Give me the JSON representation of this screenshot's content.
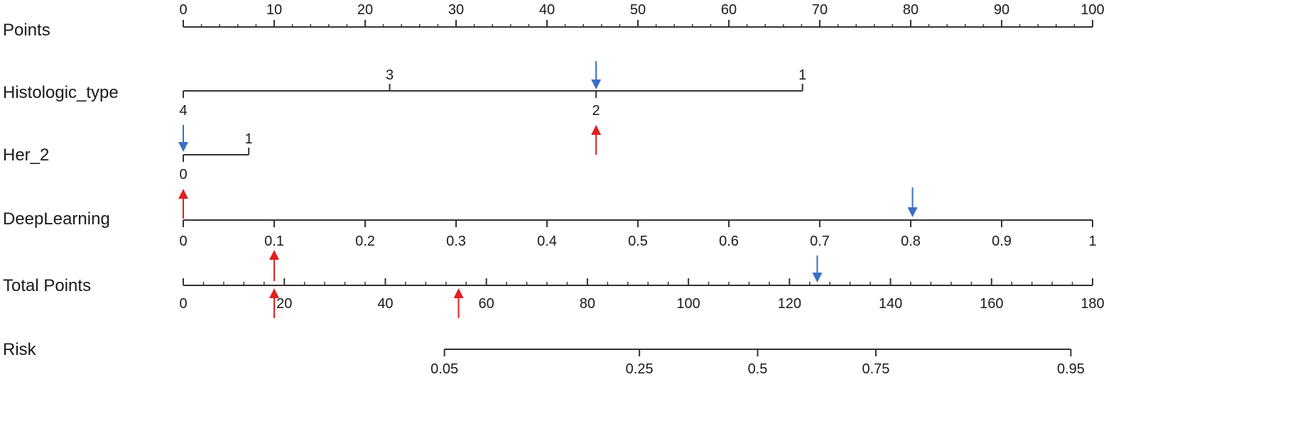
{
  "chart_data": {
    "type": "nomogram",
    "title": "",
    "scales": [
      {
        "name": "Points",
        "ticks": [
          {
            "value": 0,
            "label": "0"
          },
          {
            "value": 10,
            "label": "10"
          },
          {
            "value": 20,
            "label": "20"
          },
          {
            "value": 30,
            "label": "30"
          },
          {
            "value": 40,
            "label": "40"
          },
          {
            "value": 50,
            "label": "50"
          },
          {
            "value": 60,
            "label": "60"
          },
          {
            "value": 70,
            "label": "70"
          },
          {
            "value": 80,
            "label": "80"
          },
          {
            "value": 90,
            "label": "90"
          },
          {
            "value": 100,
            "label": "100"
          }
        ],
        "minor_step": 2
      },
      {
        "name": "Histologic_type",
        "categories": [
          {
            "label": "4",
            "points": 0,
            "side": "below"
          },
          {
            "label": "3",
            "points": 22.7,
            "side": "above"
          },
          {
            "label": "2",
            "points": 45.4,
            "side": "below"
          },
          {
            "label": "1",
            "points": 68.1,
            "side": "above"
          }
        ]
      },
      {
        "name": "Her_2",
        "categories": [
          {
            "label": "0",
            "points": 0,
            "side": "below"
          },
          {
            "label": "1",
            "points": 7.2,
            "side": "above"
          }
        ]
      },
      {
        "name": "DeepLearning",
        "ticks": [
          {
            "value": 0,
            "label": "0",
            "points": 0
          },
          {
            "value": 0.1,
            "label": "0.1",
            "points": 10
          },
          {
            "value": 0.2,
            "label": "0.2",
            "points": 20
          },
          {
            "value": 0.3,
            "label": "0.3",
            "points": 30
          },
          {
            "value": 0.4,
            "label": "0.4",
            "points": 40
          },
          {
            "value": 0.5,
            "label": "0.5",
            "points": 50
          },
          {
            "value": 0.6,
            "label": "0.6",
            "points": 60
          },
          {
            "value": 0.7,
            "label": "0.7",
            "points": 70
          },
          {
            "value": 0.8,
            "label": "0.8",
            "points": 80
          },
          {
            "value": 0.9,
            "label": "0.9",
            "points": 90
          },
          {
            "value": 1,
            "label": "1",
            "points": 100
          }
        ]
      },
      {
        "name": "Total Points",
        "ticks": [
          {
            "value": 0,
            "label": "0"
          },
          {
            "value": 20,
            "label": "20"
          },
          {
            "value": 40,
            "label": "40"
          },
          {
            "value": 60,
            "label": "60"
          },
          {
            "value": 80,
            "label": "80"
          },
          {
            "value": 100,
            "label": "100"
          },
          {
            "value": 120,
            "label": "120"
          },
          {
            "value": 140,
            "label": "140"
          },
          {
            "value": 160,
            "label": "160"
          },
          {
            "value": 180,
            "label": "180"
          }
        ],
        "range": [
          0,
          180
        ],
        "minor_step": 4
      },
      {
        "name": "Risk",
        "ticks": [
          {
            "value": 0.05,
            "label": "0.05",
            "total_points": 51.7
          },
          {
            "value": 0.25,
            "label": "0.25",
            "total_points": 90.3
          },
          {
            "value": 0.5,
            "label": "0.5",
            "total_points": 113.7
          },
          {
            "value": 0.75,
            "label": "0.75",
            "total_points": 137.1
          },
          {
            "value": 0.95,
            "label": "0.95",
            "total_points": 175.7
          }
        ]
      }
    ],
    "markers": [
      {
        "color": "#3a6fc4",
        "scale": "Histologic_type",
        "points": 45.4,
        "direction": "down"
      },
      {
        "color": "#3a6fc4",
        "scale": "Her_2",
        "points": 0,
        "direction": "down"
      },
      {
        "color": "#3a6fc4",
        "scale": "DeepLearning",
        "points": 80.2,
        "direction": "down"
      },
      {
        "color": "#3a6fc4",
        "scale": "Total Points",
        "value": 125.5,
        "direction": "down"
      },
      {
        "color": "#e02020",
        "scale": "Histologic_type",
        "points": 45.4,
        "direction": "up"
      },
      {
        "color": "#e02020",
        "scale": "Her_2",
        "points": 0,
        "direction": "up"
      },
      {
        "color": "#e02020",
        "scale": "DeepLearning",
        "points": 10,
        "direction": "up"
      },
      {
        "color": "#e02020",
        "scale": "Total Points",
        "value": 18,
        "direction": "up"
      },
      {
        "color": "#e02020",
        "scale": "Total Points",
        "value": 54.5,
        "direction": "up"
      }
    ]
  }
}
